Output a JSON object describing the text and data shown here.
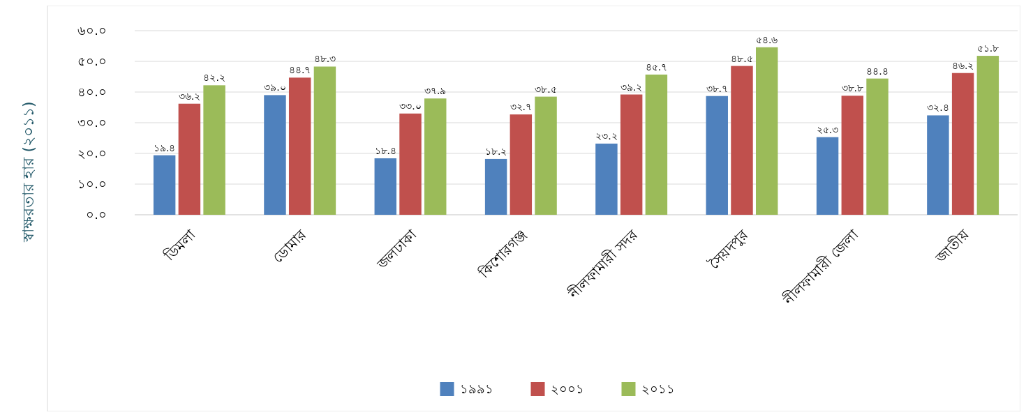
{
  "chart_data": {
    "type": "bar",
    "ylabel": "স্বাক্ষরতার হার (২০১১)",
    "categories": [
      "ডিমলা",
      "ডোমার",
      "জলঢাকা",
      "কিশোরগঞ্জ",
      "নীলফামারী সদর",
      "সৈয়দপুর",
      "নীলফামারী জেলা",
      "জাতীয়"
    ],
    "series": [
      {
        "name": "১৯৯১",
        "color": "#4f81bd",
        "values": [
          19.4,
          39.0,
          18.4,
          18.2,
          23.2,
          38.7,
          25.3,
          32.4
        ],
        "value_labels": [
          "১৯.৪",
          "৩৯.০",
          "১৮.৪",
          "১৮.২",
          "২৩.২",
          "৩৮.৭",
          "২৫.৩",
          "৩২.৪"
        ]
      },
      {
        "name": "২০০১",
        "color": "#c0504d",
        "values": [
          36.2,
          44.7,
          33.0,
          32.7,
          39.2,
          48.5,
          38.8,
          46.2
        ],
        "value_labels": [
          "৩৬.২",
          "৪৪.৭",
          "৩৩.০",
          "৩২.৭",
          "৩৯.২",
          "৪৮.৫",
          "৩৮.৮",
          "৪৬.২"
        ]
      },
      {
        "name": "২০১১",
        "color": "#9bbb59",
        "values": [
          42.2,
          48.3,
          37.9,
          38.5,
          45.7,
          54.6,
          44.4,
          51.8
        ],
        "value_labels": [
          "৪২.২",
          "৪৮.৩",
          "৩৭.৯",
          "৩৮.৫",
          "৪৫.৭",
          "৫৪.৬",
          "৪৪.৪",
          "৫১.৮"
        ]
      }
    ],
    "ylim": [
      0,
      60
    ],
    "yticks": [
      {
        "value": 0,
        "label": "০.০"
      },
      {
        "value": 10,
        "label": "১০.০"
      },
      {
        "value": 20,
        "label": "২০.০"
      },
      {
        "value": 30,
        "label": "৩০.০"
      },
      {
        "value": 40,
        "label": "৪০.০"
      },
      {
        "value": 50,
        "label": "৫০.০"
      },
      {
        "value": 60,
        "label": "৬০.০"
      }
    ],
    "grid": "y",
    "legend": "bottom"
  }
}
